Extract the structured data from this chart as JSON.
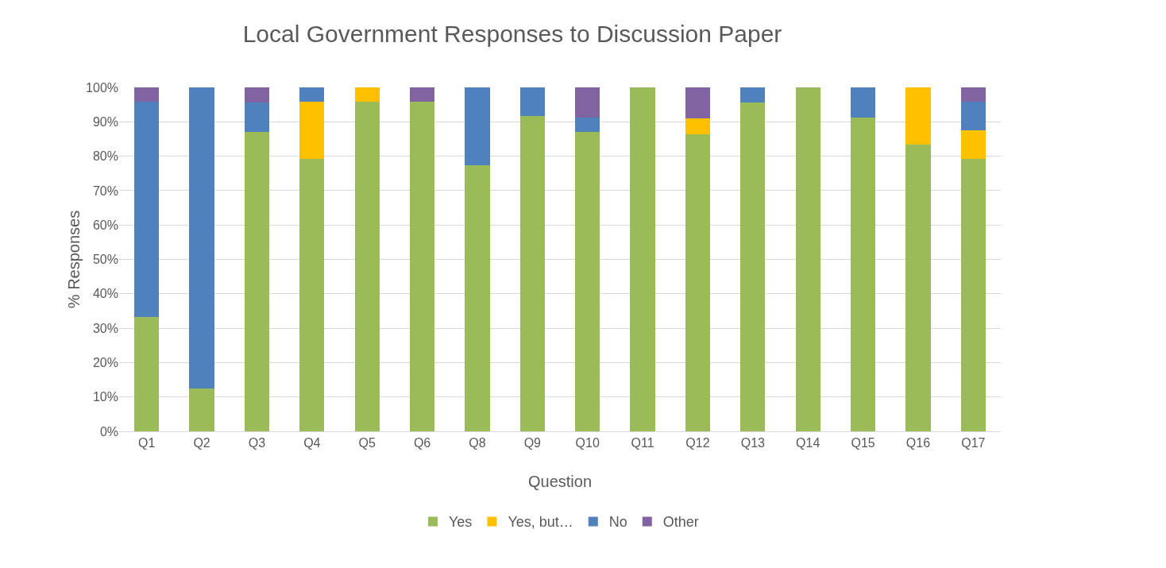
{
  "chart_data": {
    "type": "bar",
    "stacked": true,
    "title": "Local Government Responses to Discussion Paper",
    "xlabel": "Question",
    "ylabel": "% Responses",
    "categories": [
      "Q1",
      "Q2",
      "Q3",
      "Q4",
      "Q5",
      "Q6",
      "Q8",
      "Q9",
      "Q10",
      "Q11",
      "Q12",
      "Q13",
      "Q14",
      "Q15",
      "Q16",
      "Q17"
    ],
    "series": [
      {
        "name": "Yes",
        "color": "#9bbb59",
        "values": [
          33.3,
          12.5,
          87,
          79.2,
          95.8,
          95.8,
          77.3,
          91.7,
          87,
          100,
          86.4,
          95.5,
          100,
          91.3,
          83.3,
          79.2
        ]
      },
      {
        "name": "Yes, but…",
        "color": "#ffc000",
        "values": [
          0,
          0,
          0,
          16.7,
          4.2,
          0,
          0,
          0,
          0,
          0,
          4.5,
          0,
          0,
          0,
          16.7,
          8.3
        ]
      },
      {
        "name": "No",
        "color": "#4f81bd",
        "values": [
          62.5,
          87.5,
          8.7,
          4.2,
          0,
          0,
          22.7,
          8.3,
          4.3,
          0,
          0,
          4.5,
          0,
          8.7,
          0,
          8.3
        ]
      },
      {
        "name": "Other",
        "color": "#8064a2",
        "values": [
          4.2,
          0,
          4.3,
          0,
          0,
          4.2,
          0,
          0,
          8.7,
          0,
          9.1,
          0,
          0,
          0,
          0,
          4.2
        ]
      }
    ],
    "ylim": [
      0,
      100
    ],
    "yticks": [
      {
        "value": 0,
        "label": "0%"
      },
      {
        "value": 10,
        "label": "10%"
      },
      {
        "value": 20,
        "label": "20%"
      },
      {
        "value": 30,
        "label": "30%"
      },
      {
        "value": 40,
        "label": "40%"
      },
      {
        "value": 50,
        "label": "50%"
      },
      {
        "value": 60,
        "label": "60%"
      },
      {
        "value": 70,
        "label": "70%"
      },
      {
        "value": 80,
        "label": "80%"
      },
      {
        "value": 90,
        "label": "90%"
      },
      {
        "value": 100,
        "label": "100%"
      }
    ],
    "grid": "y",
    "legend": "bottom"
  }
}
